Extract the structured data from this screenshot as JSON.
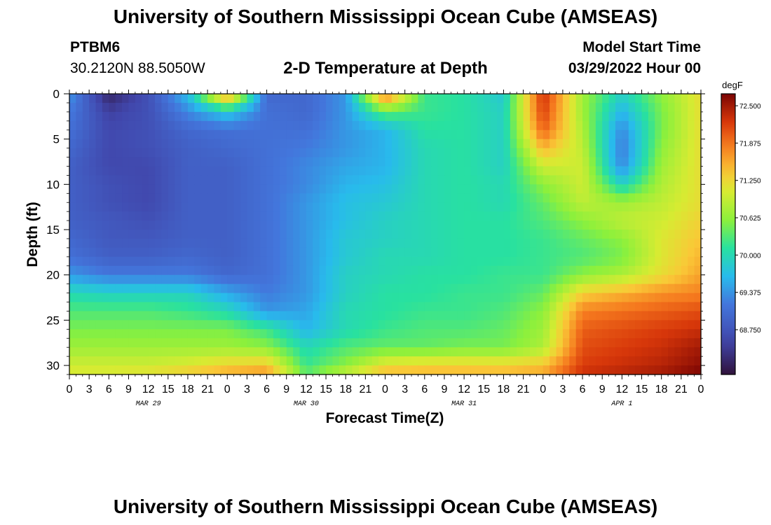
{
  "header": {
    "title": "University of Southern Mississippi Ocean Cube (AMSEAS)",
    "station_id": "PTBM6",
    "station_coords": "30.2120N  88.5050W",
    "subtitle": "2-D Temperature at Depth",
    "model_start_label": "Model Start Time",
    "model_start_value": "03/29/2022 Hour 00"
  },
  "footer": {
    "title": "University of Southern Mississippi Ocean Cube (AMSEAS)"
  },
  "chart_data": {
    "type": "heatmap",
    "title": "2-D Temperature at Depth",
    "xlabel": "Forecast Time(Z)",
    "ylabel": "Depth (ft)",
    "units": "degF",
    "x_hours": [
      0,
      6,
      12,
      18,
      24,
      30,
      36,
      42,
      48,
      54,
      60,
      66,
      72,
      78,
      84,
      90,
      96
    ],
    "x_tick_labels": [
      "0",
      "3",
      "6",
      "9",
      "12",
      "15",
      "18",
      "21",
      "0",
      "3",
      "6",
      "9",
      "12",
      "15",
      "18",
      "21",
      "0",
      "3",
      "6",
      "9",
      "12",
      "15",
      "18",
      "21",
      "0",
      "3",
      "6",
      "9",
      "12",
      "15",
      "18",
      "21",
      "0"
    ],
    "date_labels": [
      "MAR 29",
      "MAR 30",
      "MAR 31",
      "APR 1"
    ],
    "date_label_hours": [
      12,
      36,
      60,
      84
    ],
    "xlim": [
      0,
      96
    ],
    "y_depths": [
      0,
      2,
      4,
      6,
      8,
      10,
      12,
      14,
      16,
      18,
      20,
      22,
      24,
      26,
      28,
      30,
      31
    ],
    "y_ticks": [
      0,
      5,
      10,
      15,
      20,
      25,
      30
    ],
    "ylim": [
      31,
      0
    ],
    "values": [
      [
        69.4,
        68.2,
        68.7,
        69.7,
        71.9,
        69.0,
        69.0,
        69.4,
        72.0,
        70.2,
        70.1,
        69.8,
        72.3,
        70.7,
        69.9,
        70.6,
        71.2
      ],
      [
        69.2,
        68.5,
        68.7,
        69.3,
        69.8,
        69.1,
        69.0,
        69.4,
        70.4,
        70.2,
        70.1,
        69.9,
        72.2,
        70.7,
        69.6,
        70.5,
        71.2
      ],
      [
        69.1,
        68.6,
        68.7,
        69.0,
        69.1,
        69.1,
        69.1,
        69.4,
        69.6,
        70.1,
        70.1,
        69.9,
        72.0,
        70.8,
        69.3,
        70.5,
        71.2
      ],
      [
        69.0,
        68.6,
        68.7,
        68.9,
        69.0,
        69.1,
        69.2,
        69.4,
        69.6,
        70.0,
        70.1,
        69.9,
        71.5,
        70.9,
        69.2,
        70.6,
        71.2
      ],
      [
        68.9,
        68.6,
        68.6,
        68.9,
        68.9,
        69.1,
        69.3,
        69.5,
        69.6,
        70.0,
        70.1,
        69.9,
        71.0,
        71.0,
        69.3,
        70.7,
        71.2
      ],
      [
        68.9,
        68.7,
        68.6,
        68.9,
        68.9,
        69.1,
        69.3,
        69.6,
        69.7,
        70.0,
        70.1,
        70.0,
        70.6,
        71.0,
        69.9,
        70.8,
        71.2
      ],
      [
        68.9,
        68.7,
        68.6,
        68.9,
        68.9,
        69.1,
        69.4,
        69.7,
        69.8,
        70.0,
        70.1,
        70.0,
        70.4,
        70.9,
        70.7,
        70.9,
        71.2
      ],
      [
        68.9,
        68.8,
        68.7,
        68.9,
        68.9,
        69.1,
        69.4,
        69.7,
        69.9,
        70.0,
        70.1,
        70.1,
        70.3,
        70.6,
        70.9,
        71.0,
        71.3
      ],
      [
        69.0,
        68.8,
        68.8,
        68.9,
        68.9,
        69.1,
        69.4,
        69.8,
        69.9,
        70.0,
        70.1,
        70.1,
        70.2,
        70.4,
        70.6,
        71.1,
        71.4
      ],
      [
        69.1,
        68.9,
        68.9,
        69.0,
        68.9,
        69.1,
        69.4,
        69.8,
        70.0,
        70.0,
        70.1,
        70.1,
        70.2,
        70.3,
        70.5,
        71.1,
        71.5
      ],
      [
        69.4,
        69.2,
        69.2,
        69.2,
        69.0,
        69.1,
        69.4,
        69.9,
        70.0,
        70.1,
        70.1,
        70.2,
        70.2,
        70.6,
        70.8,
        71.2,
        71.6
      ],
      [
        70.0,
        69.9,
        69.9,
        69.9,
        69.5,
        69.2,
        69.4,
        69.9,
        70.1,
        70.1,
        70.2,
        70.2,
        70.4,
        71.3,
        71.5,
        71.7,
        71.8
      ],
      [
        70.3,
        70.3,
        70.3,
        70.2,
        70.0,
        69.4,
        69.5,
        70.0,
        70.1,
        70.2,
        70.2,
        70.3,
        70.6,
        71.8,
        71.9,
        72.0,
        72.1
      ],
      [
        70.5,
        70.5,
        70.5,
        70.5,
        70.5,
        70.2,
        69.6,
        70.0,
        70.2,
        70.3,
        70.3,
        70.4,
        70.7,
        72.0,
        72.1,
        72.2,
        72.3
      ],
      [
        70.7,
        70.7,
        70.7,
        70.7,
        70.7,
        70.6,
        70.0,
        70.3,
        70.4,
        70.4,
        70.5,
        70.5,
        70.8,
        72.1,
        72.2,
        72.3,
        72.5
      ],
      [
        71.0,
        71.0,
        71.0,
        71.1,
        71.3,
        71.4,
        70.2,
        70.6,
        71.2,
        71.3,
        71.3,
        71.3,
        71.4,
        72.2,
        72.3,
        72.4,
        72.6
      ],
      [
        71.1,
        71.1,
        71.2,
        71.4,
        71.6,
        71.7,
        70.4,
        71.0,
        71.5,
        71.5,
        71.5,
        71.5,
        71.6,
        72.3,
        72.4,
        72.5,
        72.7
      ]
    ],
    "colorbar": {
      "label": "degF",
      "ticks": [
        "72.500",
        "71.875",
        "71.250",
        "70.625",
        "70.000",
        "69.375",
        "68.750"
      ],
      "tick_values": [
        72.5,
        71.875,
        71.25,
        70.625,
        70.0,
        69.375,
        68.75
      ],
      "range": [
        68.0,
        72.7
      ]
    },
    "grid": false
  }
}
